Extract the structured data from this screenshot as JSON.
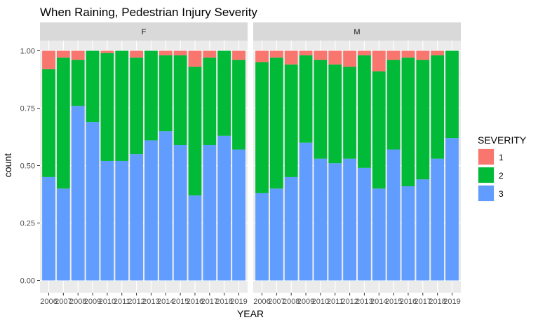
{
  "chart_data": {
    "type": "bar",
    "stacked": "fill",
    "title": "When Raining, Pedestrian Injury Severity",
    "xlabel": "YEAR",
    "ylabel": "count",
    "ylim": [
      0,
      1
    ],
    "yticks": [
      "0.00",
      "0.25",
      "0.50",
      "0.75",
      "1.00"
    ],
    "grid": true,
    "legend": {
      "title": "SEVERITY",
      "position": "right",
      "entries": [
        {
          "label": "1",
          "color": "#F8766D"
        },
        {
          "label": "2",
          "color": "#00BA38"
        },
        {
          "label": "3",
          "color": "#619CFF"
        }
      ]
    },
    "categories": [
      "2006",
      "2007",
      "2008",
      "2009",
      "2010",
      "2011",
      "2012",
      "2013",
      "2014",
      "2015",
      "2016",
      "2017",
      "2018",
      "2019"
    ],
    "xtick_labels": [
      "2006",
      "2007",
      "2008",
      "2009",
      "2010",
      "2011",
      "2012",
      "2013",
      "2014",
      "2015",
      "2016",
      "2017",
      "2018",
      "2019"
    ],
    "panels": [
      {
        "facet": "F",
        "series": [
          {
            "name": "3",
            "values": [
              0.45,
              0.4,
              0.76,
              0.69,
              0.52,
              0.52,
              0.55,
              0.61,
              0.65,
              0.59,
              0.37,
              0.59,
              0.63,
              0.57
            ]
          },
          {
            "name": "2",
            "values": [
              0.47,
              0.57,
              0.2,
              0.31,
              0.47,
              0.48,
              0.42,
              0.39,
              0.33,
              0.39,
              0.56,
              0.38,
              0.37,
              0.39
            ]
          },
          {
            "name": "1",
            "values": [
              0.08,
              0.03,
              0.04,
              0.0,
              0.01,
              0.0,
              0.03,
              0.0,
              0.02,
              0.02,
              0.07,
              0.03,
              0.0,
              0.04
            ]
          }
        ]
      },
      {
        "facet": "M",
        "series": [
          {
            "name": "3",
            "values": [
              0.38,
              0.4,
              0.45,
              0.6,
              0.53,
              0.51,
              0.53,
              0.49,
              0.4,
              0.57,
              0.41,
              0.44,
              0.53,
              0.62
            ]
          },
          {
            "name": "2",
            "values": [
              0.57,
              0.57,
              0.49,
              0.38,
              0.43,
              0.43,
              0.4,
              0.49,
              0.51,
              0.39,
              0.56,
              0.52,
              0.45,
              0.38
            ]
          },
          {
            "name": "1",
            "values": [
              0.05,
              0.03,
              0.06,
              0.02,
              0.04,
              0.06,
              0.07,
              0.02,
              0.09,
              0.04,
              0.03,
              0.04,
              0.02,
              0.0
            ]
          }
        ]
      }
    ]
  }
}
